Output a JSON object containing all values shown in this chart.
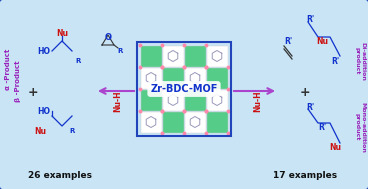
{
  "bg_color": "#c8e4f5",
  "border_color": "#2244bb",
  "title": "Zr-BDC-MOF",
  "title_color": "#1133cc",
  "title_fontsize": 7,
  "arrow_color": "#aa44cc",
  "left_label": "26 examples",
  "right_label": "17 examples",
  "side_label_color": "#9922bb",
  "nu_h_color": "#cc1111",
  "nu_color": "#cc1111",
  "r_color": "#1133cc",
  "ho_color": "#1133cc",
  "o_color": "#1133cc",
  "plus_color": "#333333",
  "line_color": "#1133cc",
  "green_tile": "#55cc88",
  "white_tile": "#ffffff",
  "pink_dot": "#ff88aa",
  "hex_color": "#9999bb"
}
